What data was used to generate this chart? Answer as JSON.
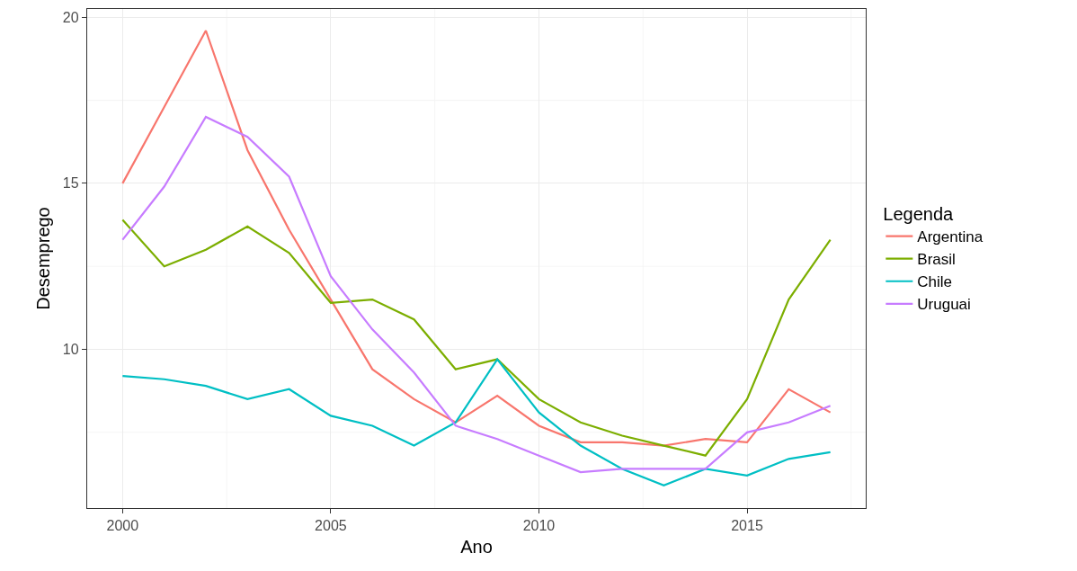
{
  "chart_data": {
    "type": "line",
    "xlabel": "Ano",
    "ylabel": "Desemprego",
    "legend_title": "Legenda",
    "x": [
      2000,
      2001,
      2002,
      2003,
      2004,
      2005,
      2006,
      2007,
      2008,
      2009,
      2010,
      2011,
      2012,
      2013,
      2014,
      2015,
      2016,
      2017
    ],
    "series": [
      {
        "name": "Argentina",
        "color": "#f8766d",
        "values": [
          15.0,
          17.3,
          19.6,
          16.0,
          13.6,
          11.5,
          9.4,
          8.5,
          7.8,
          8.6,
          7.7,
          7.2,
          7.2,
          7.1,
          7.3,
          7.2,
          8.8,
          8.1
        ]
      },
      {
        "name": "Brasil",
        "color": "#7cae00",
        "values": [
          13.9,
          12.5,
          13.0,
          13.7,
          12.9,
          11.4,
          11.5,
          10.9,
          9.4,
          9.7,
          8.5,
          7.8,
          7.4,
          7.1,
          6.8,
          8.5,
          11.5,
          13.3
        ]
      },
      {
        "name": "Chile",
        "color": "#00bfc4",
        "values": [
          9.2,
          9.1,
          8.9,
          8.5,
          8.8,
          8.0,
          7.7,
          7.1,
          7.8,
          9.7,
          8.1,
          7.1,
          6.4,
          5.9,
          6.4,
          6.2,
          6.7,
          6.9
        ]
      },
      {
        "name": "Uruguai",
        "color": "#c77cff",
        "values": [
          13.3,
          14.9,
          17.0,
          16.4,
          15.2,
          12.2,
          10.6,
          9.3,
          7.7,
          7.3,
          6.8,
          6.3,
          6.4,
          6.4,
          6.4,
          7.5,
          7.8,
          8.3
        ]
      }
    ],
    "xlim": [
      1999.15,
      2017.85
    ],
    "xticks": [
      2000,
      2005,
      2010,
      2015
    ],
    "ylim": [
      5.22,
      20.25
    ],
    "yticks": [
      10,
      15,
      20
    ],
    "grid": true,
    "legend": "right",
    "marker": "none",
    "line_style": "solid"
  }
}
